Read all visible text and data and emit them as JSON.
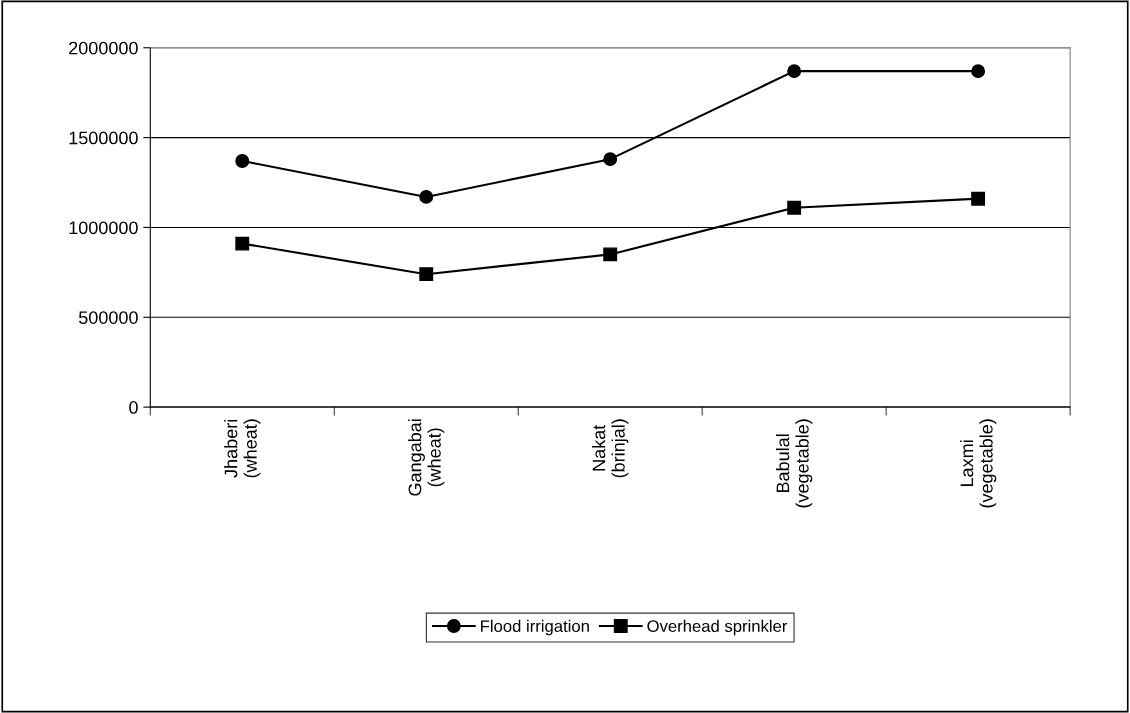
{
  "chart_data": {
    "type": "line",
    "categories": [
      "Jhaberi\n(wheat)",
      "Gangabai\n(wheat)",
      "Nakat\n(brinjal)",
      "Babulal\n(vegetable)",
      "Laxmi\n(vegetable)"
    ],
    "series": [
      {
        "name": "Flood irrigation",
        "color": "#000000",
        "marker": "circle",
        "values": [
          1370000,
          1170000,
          1380000,
          1870000,
          1870000
        ]
      },
      {
        "name": "Overhead sprinkler",
        "color": "#000000",
        "marker": "square",
        "values": [
          910000,
          740000,
          850000,
          1110000,
          1160000
        ]
      }
    ],
    "ylim": [
      0,
      2000000
    ],
    "yticks": [
      0,
      500000,
      1000000,
      1500000,
      2000000
    ],
    "grid": "y",
    "legend": "bottom",
    "line_style": "solid"
  }
}
